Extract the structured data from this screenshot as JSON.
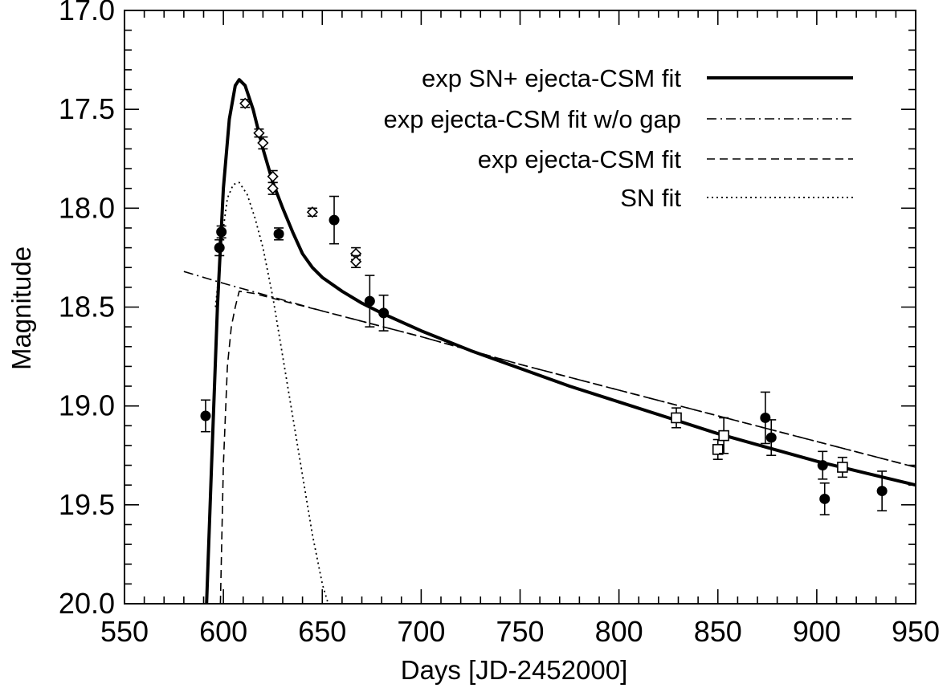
{
  "chart_data": {
    "type": "line",
    "xlabel": "Days [JD-2452000]",
    "ylabel": "Magnitude",
    "xlim": [
      550,
      950
    ],
    "ylim": [
      20.0,
      17.0
    ],
    "y_inverted": true,
    "grid": false,
    "legend_position": "top-right",
    "x_ticks": [
      "550",
      "600",
      "650",
      "700",
      "750",
      "800",
      "850",
      "900",
      "950"
    ],
    "y_ticks": [
      "17.0",
      "17.5",
      "18.0",
      "18.5",
      "19.0",
      "19.5",
      "20.0"
    ],
    "series": [
      {
        "name": "exp SN+ ejecta-CSM fit",
        "style": "solid-thick",
        "x": [
          591.5,
          594,
          597,
          600,
          603,
          606,
          608,
          611,
          615,
          620,
          625,
          630,
          635,
          640,
          645,
          650,
          660,
          670,
          680,
          700,
          725,
          750,
          775,
          800,
          825,
          850,
          875,
          900,
          925,
          950
        ],
        "y": [
          20.0,
          19.3,
          18.5,
          17.9,
          17.55,
          17.38,
          17.35,
          17.38,
          17.5,
          17.7,
          17.87,
          18.0,
          18.12,
          18.23,
          18.3,
          18.35,
          18.42,
          18.48,
          18.53,
          18.62,
          18.72,
          18.81,
          18.9,
          18.98,
          19.06,
          19.14,
          19.21,
          19.28,
          19.34,
          19.4
        ]
      },
      {
        "name": "exp ejecta-CSM fit w/o gap",
        "style": "dash-dot",
        "x": [
          580,
          600,
          650,
          700,
          750,
          800,
          850,
          900,
          950
        ],
        "y": [
          18.32,
          18.38,
          18.52,
          18.65,
          18.79,
          18.92,
          19.05,
          19.18,
          19.31
        ]
      },
      {
        "name": "exp ejecta-CSM fit",
        "style": "dashed",
        "x": [
          598.5,
          600,
          602,
          604,
          606,
          608,
          615,
          650,
          700,
          750,
          800,
          850,
          900,
          950
        ],
        "y": [
          20.0,
          19.3,
          18.8,
          18.6,
          18.5,
          18.42,
          18.43,
          18.52,
          18.65,
          18.79,
          18.92,
          19.05,
          19.18,
          19.31
        ]
      },
      {
        "name": "SN fit",
        "style": "dotted",
        "x": [
          596,
          598,
          600,
          602,
          605,
          608,
          612,
          616,
          620,
          625,
          630,
          635,
          640,
          645,
          650,
          653
        ],
        "y": [
          18.5,
          18.3,
          18.1,
          17.95,
          17.88,
          17.87,
          17.93,
          18.05,
          18.2,
          18.45,
          18.75,
          19.05,
          19.35,
          19.65,
          19.9,
          20.0
        ]
      }
    ],
    "observations": [
      {
        "marker": "filled-circle",
        "points": [
          {
            "x": 591,
            "y": 19.05,
            "err": 0.08
          },
          {
            "x": 598,
            "y": 18.2,
            "err": 0.04
          },
          {
            "x": 599,
            "y": 18.12,
            "err": 0.03
          },
          {
            "x": 628,
            "y": 18.13,
            "err": 0.03
          },
          {
            "x": 656,
            "y": 18.06,
            "err": 0.12
          },
          {
            "x": 674,
            "y": 18.47,
            "err": 0.13
          },
          {
            "x": 681,
            "y": 18.53,
            "err": 0.09
          },
          {
            "x": 874,
            "y": 19.06,
            "err": 0.13
          },
          {
            "x": 877,
            "y": 19.16,
            "err": 0.09
          },
          {
            "x": 903,
            "y": 19.3,
            "err": 0.07
          },
          {
            "x": 904,
            "y": 19.47,
            "err": 0.08
          },
          {
            "x": 933,
            "y": 19.43,
            "err": 0.1
          }
        ]
      },
      {
        "marker": "open-diamond",
        "points": [
          {
            "x": 611,
            "y": 17.47,
            "err": 0.02
          },
          {
            "x": 618,
            "y": 17.62,
            "err": 0.02
          },
          {
            "x": 620,
            "y": 17.67,
            "err": 0.03
          },
          {
            "x": 625,
            "y": 17.84,
            "err": 0.03
          },
          {
            "x": 625,
            "y": 17.9,
            "err": 0.03
          },
          {
            "x": 645,
            "y": 18.02,
            "err": 0.02
          },
          {
            "x": 667,
            "y": 18.23,
            "err": 0.03
          },
          {
            "x": 667,
            "y": 18.27,
            "err": 0.03
          }
        ]
      },
      {
        "marker": "open-square",
        "points": [
          {
            "x": 829,
            "y": 19.06,
            "err": 0.05
          },
          {
            "x": 850,
            "y": 19.22,
            "err": 0.05
          },
          {
            "x": 853,
            "y": 19.15,
            "err": 0.09
          },
          {
            "x": 913,
            "y": 19.31,
            "err": 0.05
          }
        ]
      }
    ]
  }
}
